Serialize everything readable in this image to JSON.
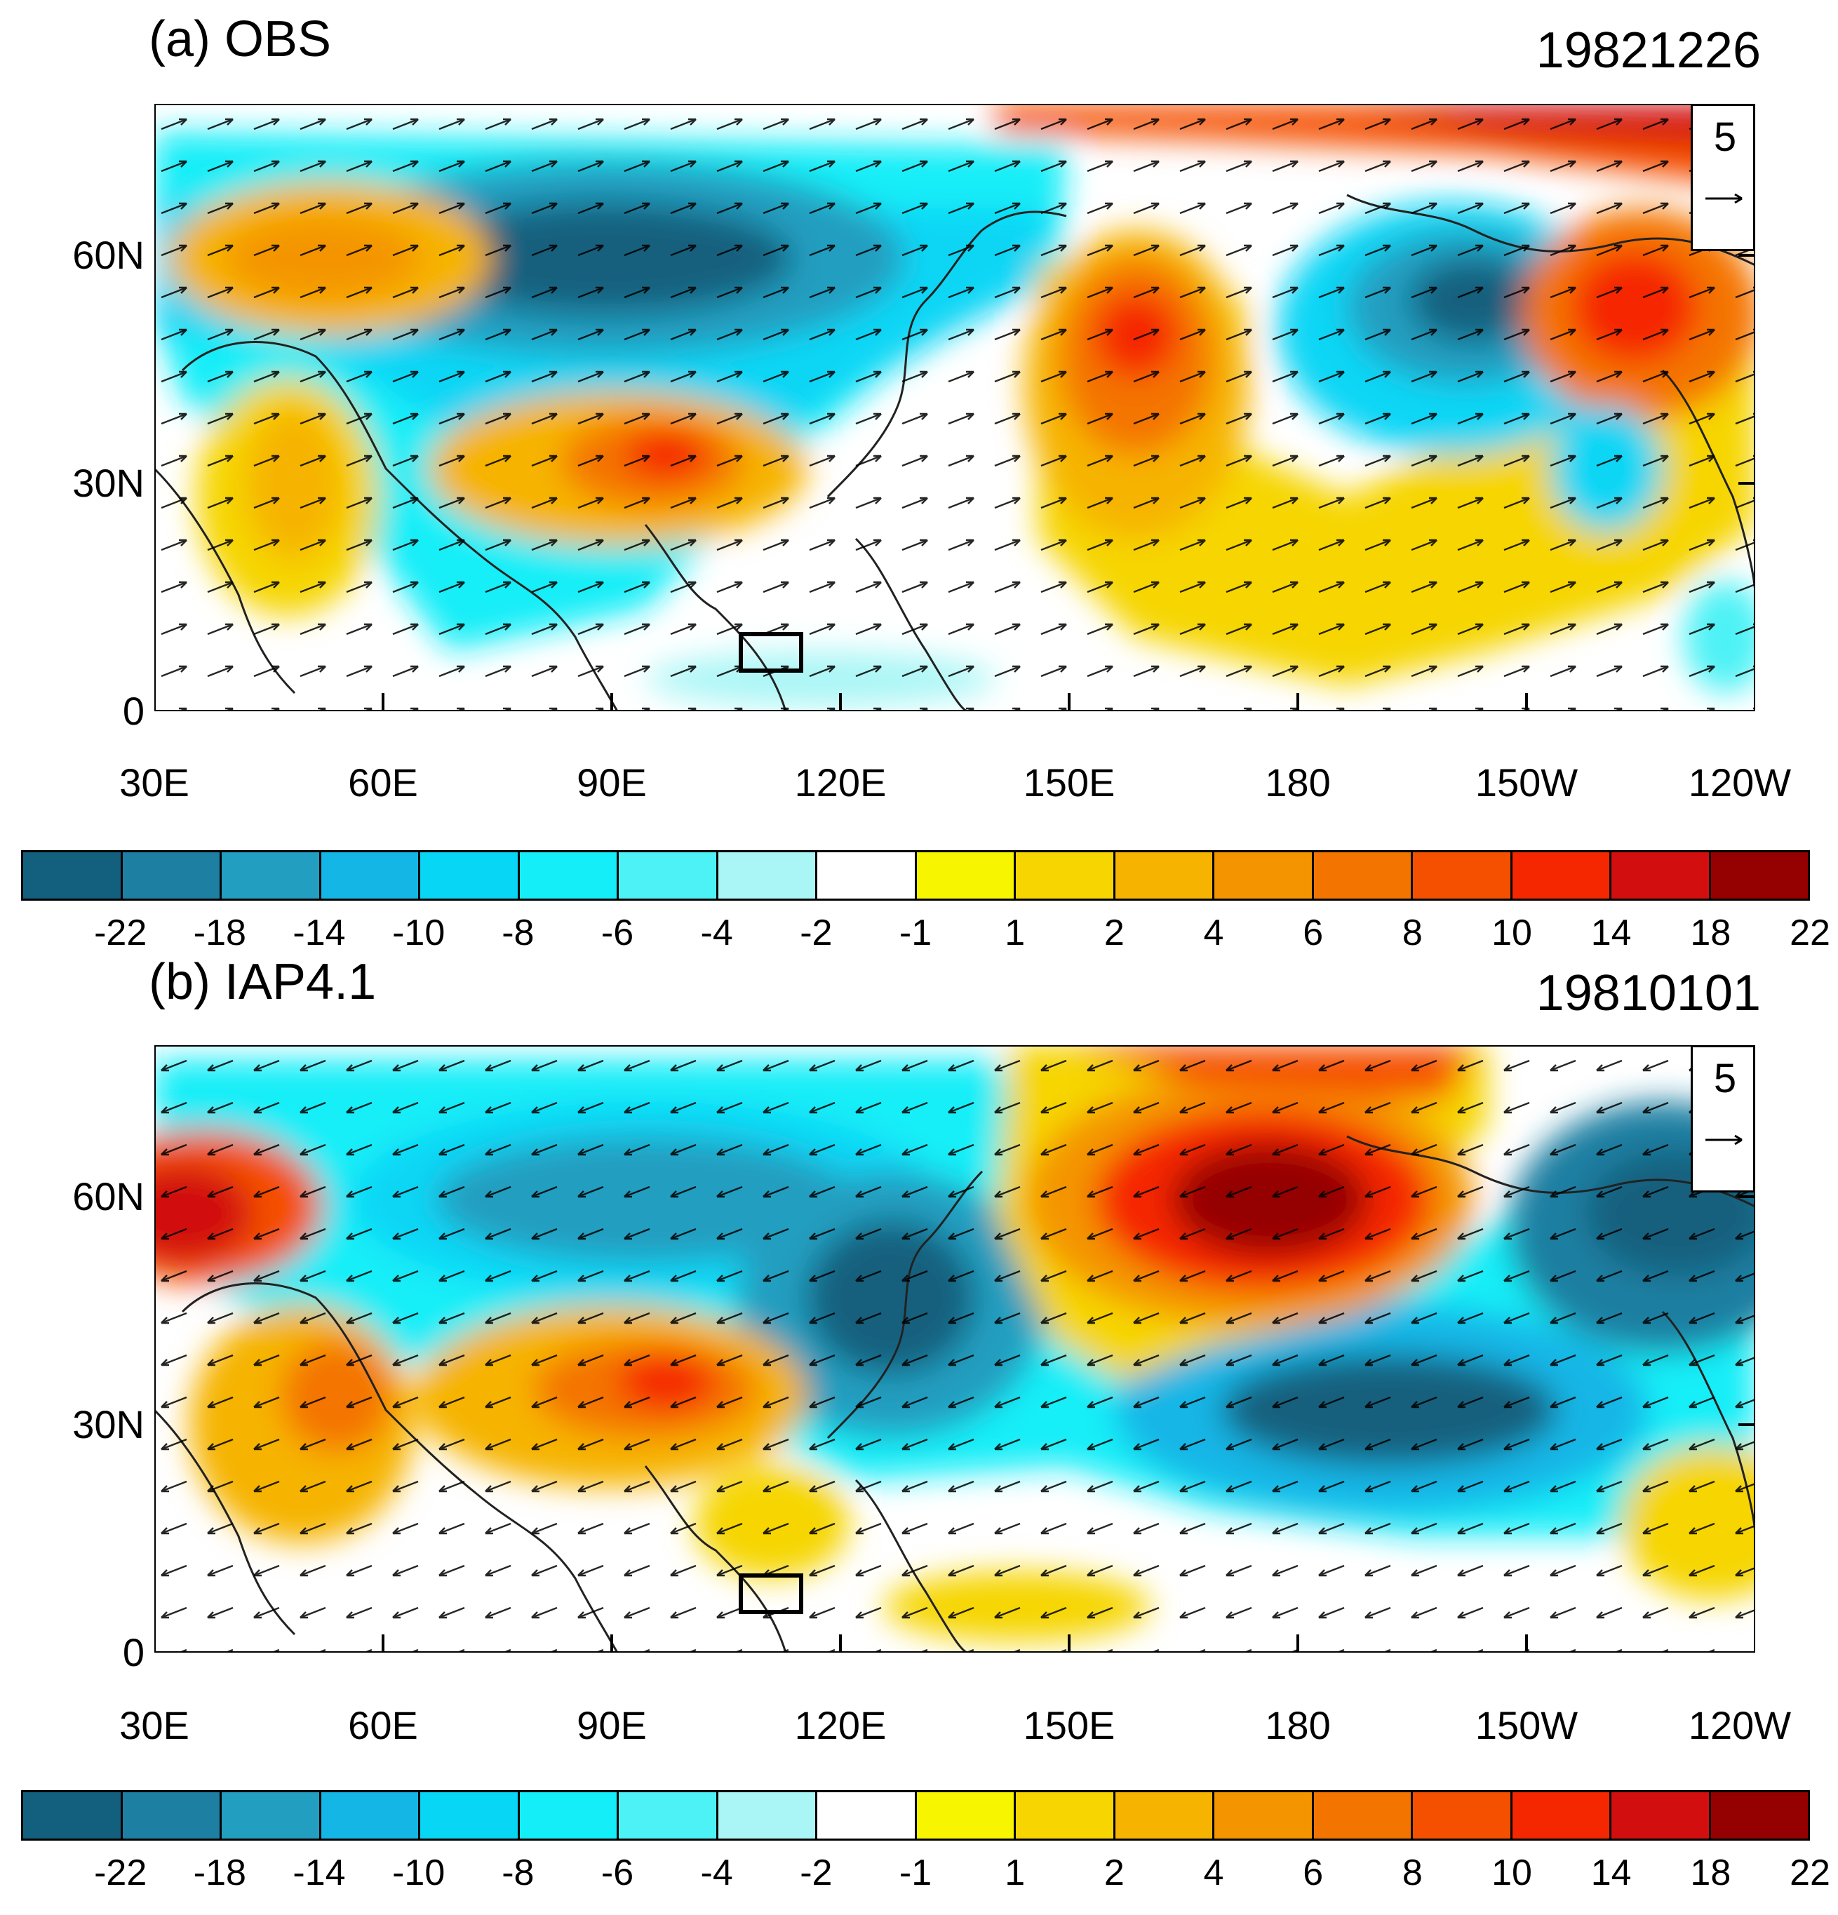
{
  "panels": [
    {
      "title": "(a) OBS",
      "date": "19821226",
      "ref_vector": "5",
      "yticks": [
        "60N",
        "30N",
        "0"
      ],
      "xticks": [
        "30E",
        "60E",
        "90E",
        "120E",
        "150E",
        "180",
        "150W",
        "120W"
      ],
      "highlight_box": "reference region (~108E–115E, 5N–10N)"
    },
    {
      "title": "(b) IAP4.1",
      "date": "19810101",
      "ref_vector": "5",
      "yticks": [
        "60N",
        "30N",
        "0"
      ],
      "xticks": [
        "30E",
        "60E",
        "90E",
        "120E",
        "150E",
        "180",
        "150W",
        "120W"
      ],
      "highlight_box": "reference region (~108E–115E, 5N–10N)"
    }
  ],
  "colorbar": {
    "labels": [
      "-22",
      "-18",
      "-14",
      "-10",
      "-8",
      "-6",
      "-4",
      "-2",
      "-1",
      "1",
      "2",
      "4",
      "6",
      "8",
      "10",
      "14",
      "18",
      "22"
    ],
    "colors": [
      "#12607e",
      "#1d7fa2",
      "#229ec0",
      "#14b6e6",
      "#07d6f5",
      "#13eef8",
      "#4df2f6",
      "#aaf6f6",
      "#ffffff",
      "#f8f500",
      "#f6d500",
      "#f6b400",
      "#f49500",
      "#f47400",
      "#f55000",
      "#f52700",
      "#d20e0f",
      "#950000"
    ]
  },
  "chart_data": {
    "type": "heatmap",
    "description_free": false,
    "lon_range": [
      30,
      240
    ],
    "lat_range": [
      0,
      80
    ],
    "contour_levels": [
      -22,
      -18,
      -14,
      -10,
      -8,
      -6,
      -4,
      -2,
      -1,
      1,
      2,
      4,
      6,
      8,
      10,
      14,
      18,
      22
    ],
    "panels": [
      {
        "name": "OBS",
        "anomaly_centers": [
          {
            "lon": 45,
            "lat": 62,
            "value": 6
          },
          {
            "lon": 45,
            "lat": 27,
            "value": 4
          },
          {
            "lon": 98,
            "lat": 31,
            "value": 10
          },
          {
            "lon": 105,
            "lat": 62,
            "value": -22
          },
          {
            "lon": 160,
            "lat": 48,
            "value": 10
          },
          {
            "lon": 190,
            "lat": 55,
            "value": -18
          },
          {
            "lon": 220,
            "lat": 52,
            "value": 10
          },
          {
            "lon": 205,
            "lat": 76,
            "value": 10
          },
          {
            "lon": 185,
            "lat": 22,
            "value": 2
          },
          {
            "lon": 225,
            "lat": 33,
            "value": -6
          }
        ]
      },
      {
        "name": "IAP4.1",
        "anomaly_centers": [
          {
            "lon": 35,
            "lat": 58,
            "value": 14
          },
          {
            "lon": 50,
            "lat": 35,
            "value": 6
          },
          {
            "lon": 95,
            "lat": 33,
            "value": 8
          },
          {
            "lon": 100,
            "lat": 60,
            "value": -14
          },
          {
            "lon": 130,
            "lat": 45,
            "value": -18
          },
          {
            "lon": 172,
            "lat": 60,
            "value": 22
          },
          {
            "lon": 200,
            "lat": 32,
            "value": -18
          },
          {
            "lon": 220,
            "lat": 62,
            "value": -22
          },
          {
            "lon": 232,
            "lat": 18,
            "value": 1
          },
          {
            "lon": 148,
            "lat": 4,
            "value": 1
          }
        ]
      }
    ]
  }
}
